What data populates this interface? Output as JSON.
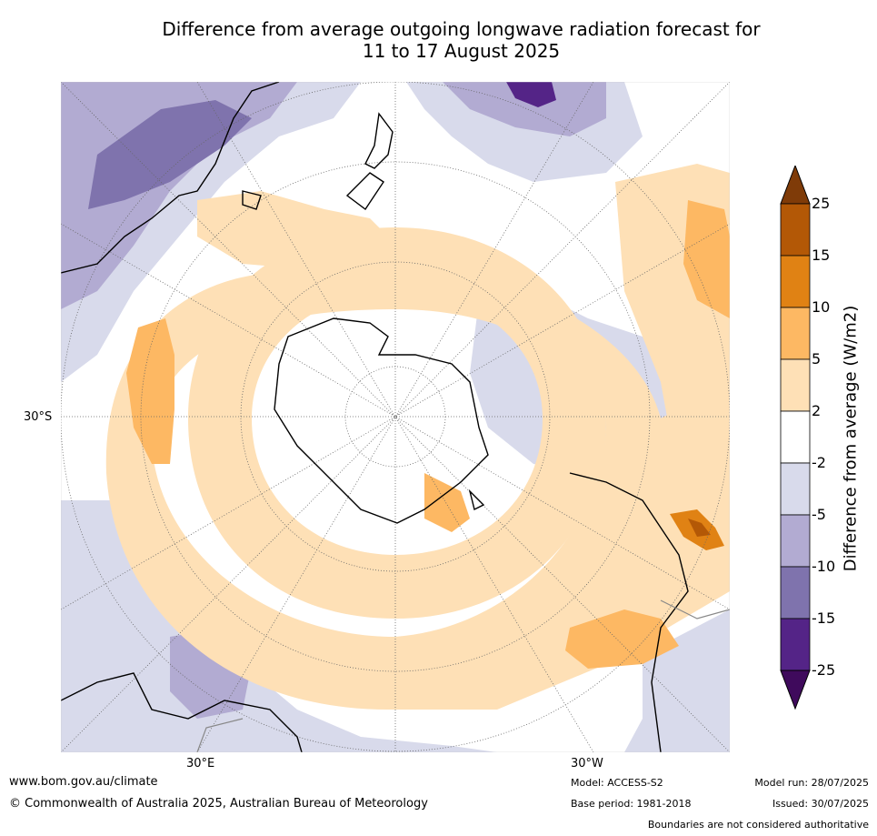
{
  "title_line1": "Difference from average outgoing longwave radiation forecast for",
  "title_line2": "11 to 17 August 2025",
  "map": {
    "lat_label": "30°S",
    "lon_label_east": "30°E",
    "lon_label_west": "30°W",
    "colors": {
      "neg25": "#3f0a5c",
      "neg15": "#542487",
      "neg10": "#7f73ad",
      "neg5": "#b2abd2",
      "neg2": "#d8daeb",
      "zero": "#ffffff",
      "pos2": "#fee0b6",
      "pos5": "#fdb863",
      "pos10": "#e08214",
      "pos15": "#b35806",
      "pos25": "#7f3b08"
    }
  },
  "colorbar": {
    "title": "Difference from average (W/m2)",
    "ticks": [
      "25",
      "15",
      "10",
      "5",
      "2",
      "-2",
      "-5",
      "-10",
      "-15",
      "-25"
    ]
  },
  "footer": {
    "website": "www.bom.gov.au/climate",
    "copyright": "© Commonwealth of Australia 2025, Australian Bureau of Meteorology",
    "model": "Model: ACCESS-S2",
    "base_period": "Base period: 1981-2018",
    "model_run": "Model run: 28/07/2025",
    "issued": "Issued: 30/07/2025",
    "disclaimer": "Boundaries are not considered authoritative"
  }
}
